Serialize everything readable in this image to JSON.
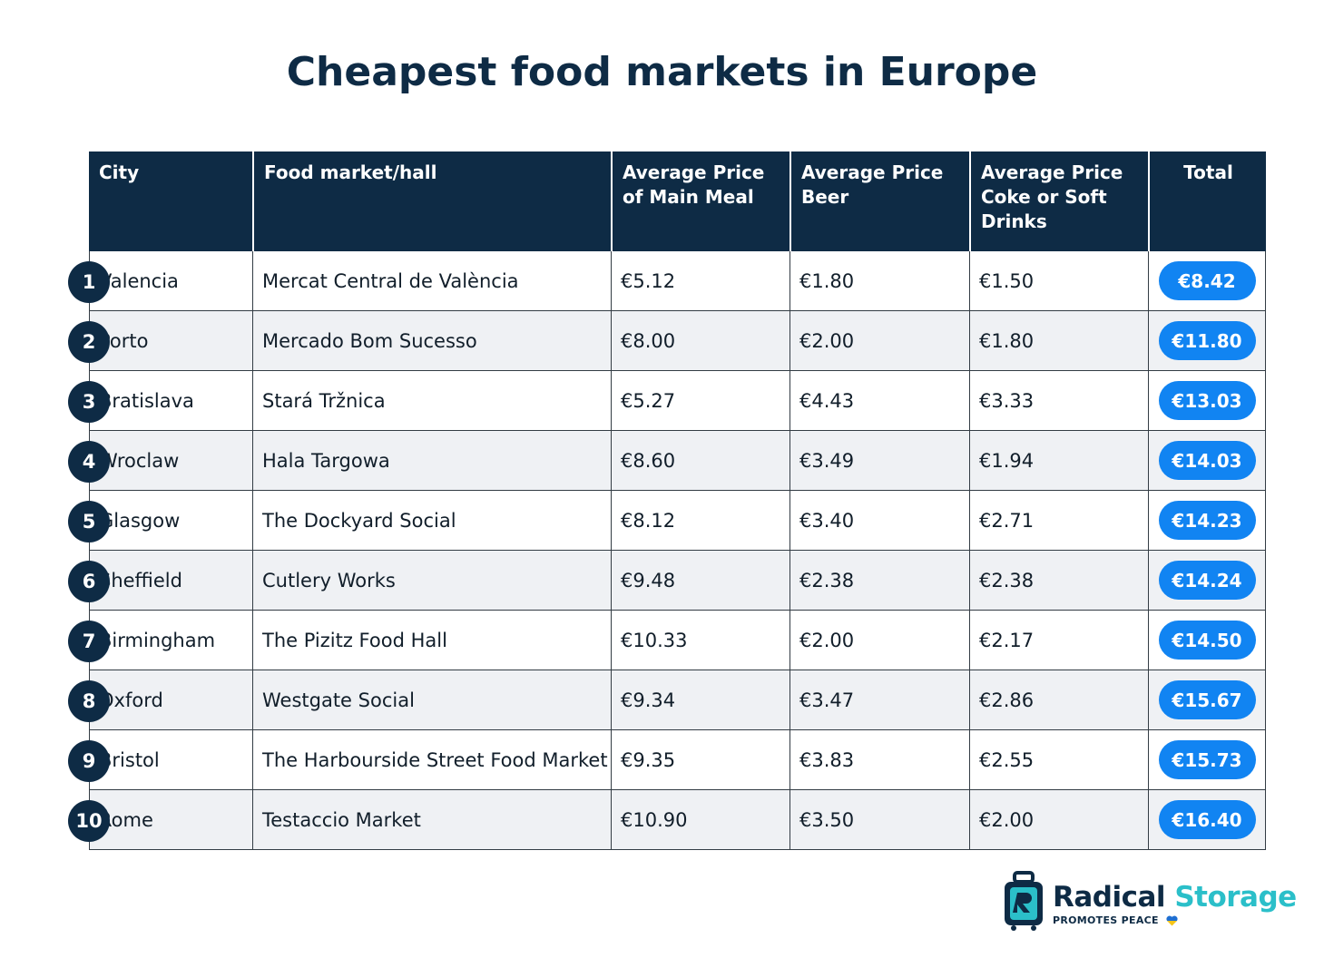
{
  "title": "Cheapest food markets in Europe",
  "headers": {
    "city": "City",
    "market": "Food market/hall",
    "meal": "Average Price of Main Meal",
    "beer": "Average Price Beer",
    "coke": "Average Price Coke or Soft Drinks",
    "total": "Total"
  },
  "rows": [
    {
      "rank": "1",
      "city": "Valencia",
      "market": "Mercat Central de València",
      "meal": "€5.12",
      "beer": "€1.80",
      "coke": "€1.50",
      "total": "€8.42"
    },
    {
      "rank": "2",
      "city": "Porto",
      "market": "Mercado Bom Sucesso",
      "meal": "€8.00",
      "beer": "€2.00",
      "coke": "€1.80",
      "total": "€11.80"
    },
    {
      "rank": "3",
      "city": "Bratislava",
      "market": "Stará Tržnica",
      "meal": "€5.27",
      "beer": "€4.43",
      "coke": "€3.33",
      "total": "€13.03"
    },
    {
      "rank": "4",
      "city": "Wroclaw",
      "market": "Hala Targowa",
      "meal": "€8.60",
      "beer": "€3.49",
      "coke": "€1.94",
      "total": "€14.03"
    },
    {
      "rank": "5",
      "city": "Glasgow",
      "market": "The Dockyard Social",
      "meal": "€8.12",
      "beer": "€3.40",
      "coke": "€2.71",
      "total": "€14.23"
    },
    {
      "rank": "6",
      "city": "Sheffield",
      "market": "Cutlery Works",
      "meal": "€9.48",
      "beer": "€2.38",
      "coke": "€2.38",
      "total": "€14.24"
    },
    {
      "rank": "7",
      "city": "Birmingham",
      "market": "The Pizitz Food Hall",
      "meal": "€10.33",
      "beer": "€2.00",
      "coke": "€2.17",
      "total": "€14.50"
    },
    {
      "rank": "8",
      "city": "Oxford",
      "market": "Westgate Social",
      "meal": "€9.34",
      "beer": "€3.47",
      "coke": "€2.86",
      "total": "€15.67"
    },
    {
      "rank": "9",
      "city": "Bristol",
      "market": "The Harbourside Street Food Market",
      "meal": "€9.35",
      "beer": "€3.83",
      "coke": "€2.55",
      "total": "€15.73"
    },
    {
      "rank": "10",
      "city": "Rome",
      "market": "Testaccio Market",
      "meal": "€10.90",
      "beer": "€3.50",
      "coke": "€2.00",
      "total": "€16.40"
    }
  ],
  "chart_data": {
    "type": "table",
    "title": "Cheapest food markets in Europe",
    "columns": [
      "City",
      "Food market/hall",
      "Average Price of Main Meal",
      "Average Price Beer",
      "Average Price Coke or Soft Drinks",
      "Total"
    ],
    "rows": [
      [
        "Valencia",
        "Mercat Central de València",
        5.12,
        1.8,
        1.5,
        8.42
      ],
      [
        "Porto",
        "Mercado Bom Sucesso",
        8.0,
        2.0,
        1.8,
        11.8
      ],
      [
        "Bratislava",
        "Stará Tržnica",
        5.27,
        4.43,
        3.33,
        13.03
      ],
      [
        "Wroclaw",
        "Hala Targowa",
        8.6,
        3.49,
        1.94,
        14.03
      ],
      [
        "Glasgow",
        "The Dockyard Social",
        8.12,
        3.4,
        2.71,
        14.23
      ],
      [
        "Sheffield",
        "Cutlery Works",
        9.48,
        2.38,
        2.38,
        14.24
      ],
      [
        "Birmingham",
        "The Pizitz Food Hall",
        10.33,
        2.0,
        2.17,
        14.5
      ],
      [
        "Oxford",
        "Westgate Social",
        9.34,
        3.47,
        2.86,
        15.67
      ],
      [
        "Bristol",
        "The Harbourside Street Food Market",
        9.35,
        3.83,
        2.55,
        15.73
      ],
      [
        "Rome",
        "Testaccio Market",
        10.9,
        3.5,
        2.0,
        16.4
      ]
    ]
  },
  "logo": {
    "word1": "Radical",
    "word2": "Storage",
    "tagline": "PROMOTES PEACE",
    "icon": "luggage-icon",
    "heart_icon": "heart-icon"
  },
  "colors": {
    "navy": "#0e2b45",
    "accent_blue": "#1184f2",
    "teal": "#2bbfc9",
    "row_alt": "#eff1f4"
  }
}
